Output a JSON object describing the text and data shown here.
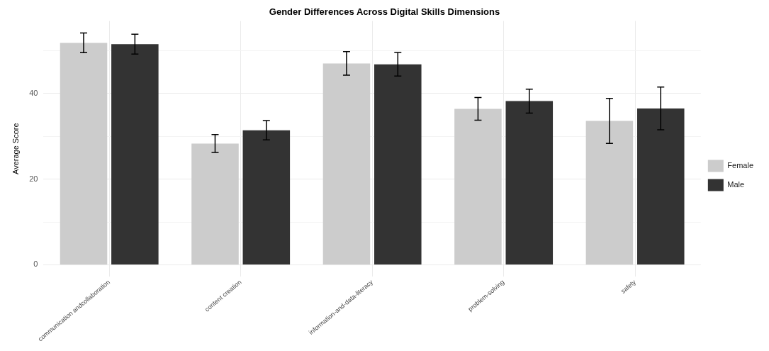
{
  "chart_data": {
    "type": "bar",
    "title": "Gender Differences Across Digital Skills Dimensions",
    "ylabel": "Average Score",
    "categories": [
      "communication andcollaboration",
      "content creation",
      "information-and-data-literacy",
      "problem-solving",
      "safety"
    ],
    "series": [
      {
        "name": "Female",
        "color": "#cccccc",
        "values": [
          51.8,
          28.3,
          47.0,
          36.4,
          33.6
        ],
        "errors": [
          2.3,
          2.1,
          2.75,
          2.65,
          5.25
        ]
      },
      {
        "name": "Male",
        "color": "#333333",
        "values": [
          51.5,
          31.4,
          46.8,
          38.2,
          36.5
        ],
        "errors": [
          2.3,
          2.25,
          2.75,
          2.8,
          5.0
        ]
      }
    ],
    "ylim": [
      -2.7,
      56.9
    ],
    "yticks": [
      0,
      {
        "value": 10,
        "label": null
      },
      20,
      {
        "value": 30,
        "label": null
      },
      40,
      {
        "value": 50,
        "label": null
      }
    ],
    "grid": true,
    "legend": "right"
  }
}
